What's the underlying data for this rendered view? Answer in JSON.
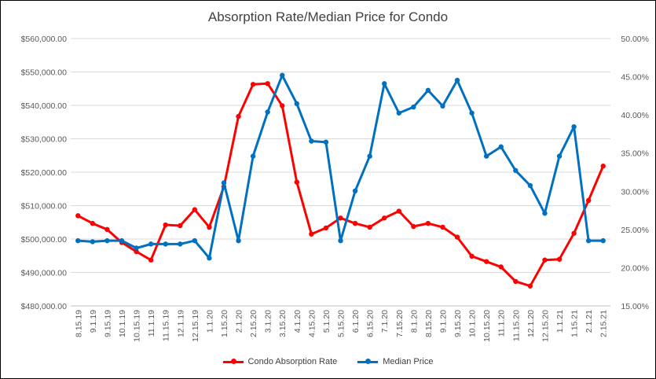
{
  "chart_data": {
    "type": "line",
    "title": "Absorption Rate/Median Price for Condo",
    "categories": [
      "8.15.19",
      "9.1.19",
      "9.15.19",
      "10.1.19",
      "10.15.19",
      "11.1.19",
      "11.15.19",
      "12.1.19",
      "12.15.19",
      "1.1.20",
      "1.15.20",
      "2.1.20",
      "2.15.20",
      "3.1.20",
      "3.15.20",
      "4.1.20",
      "4.15.20",
      "5.1.20",
      "5.15.20",
      "6.1.20",
      "6.15.20",
      "7.1.20",
      "7.15.20",
      "8.1.20",
      "8.15.20",
      "9.1.20",
      "9.15.20",
      "10.1.20",
      "10.15.20",
      "11.1.20",
      "11.15.20",
      "12.1.20",
      "12.15.20",
      "1.1.21",
      "1.15.21",
      "2.1.21",
      "2.15.21"
    ],
    "y_left": {
      "ylim": [
        480000,
        560000
      ],
      "ticks": [
        "$480,000.00",
        "$490,000.00",
        "$500,000.00",
        "$510,000.00",
        "$520,000.00",
        "$530,000.00",
        "$540,000.00",
        "$550,000.00",
        "$560,000.00"
      ]
    },
    "y_right": {
      "ylim": [
        15,
        50
      ],
      "ticks": [
        "15.00%",
        "20.00%",
        "25.00%",
        "30.00%",
        "35.00%",
        "40.00%",
        "45.00%",
        "50.00%"
      ]
    },
    "series": [
      {
        "name": "Condo Absorption Rate",
        "color": "#ff0000",
        "axis": "right",
        "values": [
          26.8,
          25.8,
          25.0,
          23.3,
          22.1,
          21.0,
          25.6,
          25.5,
          27.6,
          25.3,
          30.6,
          39.8,
          44.0,
          44.1,
          41.2,
          31.2,
          24.4,
          25.2,
          26.5,
          25.8,
          25.3,
          26.5,
          27.4,
          25.4,
          25.8,
          25.3,
          24.0,
          21.5,
          20.8,
          20.1,
          18.2,
          17.6,
          21.0,
          21.1,
          24.5,
          28.8,
          33.3
        ]
      },
      {
        "name": "Median Price",
        "color": "#0070c0",
        "axis": "left",
        "values": [
          499500,
          499200,
          499500,
          499500,
          497300,
          498500,
          498500,
          498500,
          499500,
          494300,
          516800,
          499500,
          524800,
          538000,
          549000,
          540500,
          529300,
          529000,
          499500,
          514400,
          524800,
          546500,
          537700,
          539500,
          544500,
          539800,
          547500,
          537700,
          524800,
          527600,
          520500,
          516000,
          507700,
          524800,
          533600,
          499500,
          499500
        ]
      }
    ],
    "legend_position": "bottom",
    "grid": true
  }
}
